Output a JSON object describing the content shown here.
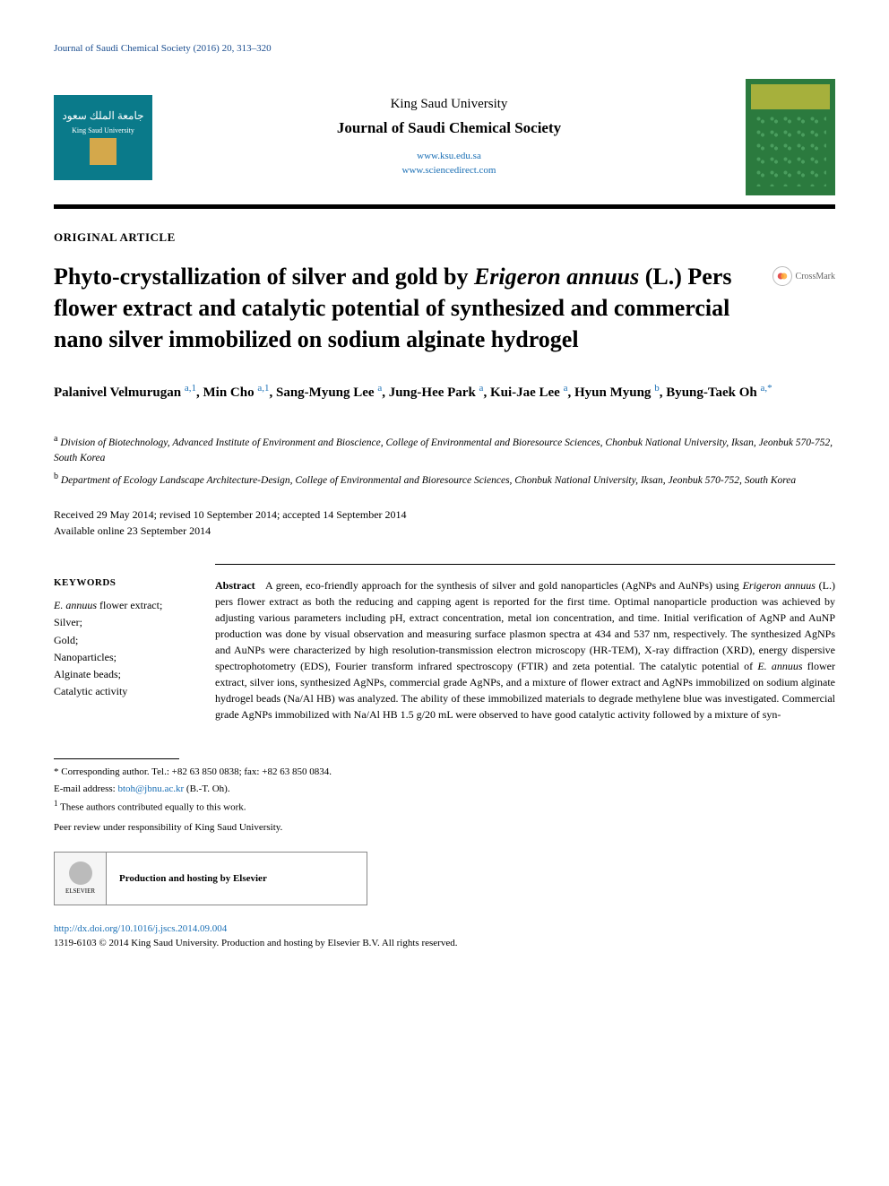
{
  "running_head": "Journal of Saudi Chemical Society (2016) 20, 313–320",
  "masthead": {
    "university": "King Saud University",
    "journal": "Journal of Saudi Chemical Society",
    "links": [
      "www.ksu.edu.sa",
      "www.sciencedirect.com"
    ]
  },
  "article_type": "ORIGINAL ARTICLE",
  "title_pre": "Phyto-crystallization of silver and gold by ",
  "title_italic": "Erigeron annuus",
  "title_post": " (L.) Pers flower extract and catalytic potential of synthesized and commercial nano silver immobilized on sodium alginate hydrogel",
  "crossmark": "CrossMark",
  "authors_html": "Palanivel Velmurugan <sup>a,1</sup>, Min Cho <sup>a,1</sup>, Sang-Myung Lee <sup>a</sup>, Jung-Hee Park <sup>a</sup>, Kui-Jae Lee <sup>a</sup>, Hyun Myung <sup>b</sup>, Byung-Taek Oh <sup>a,<span class='ast'>*</span></sup>",
  "affiliations": [
    {
      "sup": "a",
      "text": "Division of Biotechnology, Advanced Institute of Environment and Bioscience, College of Environmental and Bioresource Sciences, Chonbuk National University, Iksan, Jeonbuk 570-752, South Korea"
    },
    {
      "sup": "b",
      "text": "Department of Ecology Landscape Architecture-Design, College of Environmental and Bioresource Sciences, Chonbuk National University, Iksan, Jeonbuk 570-752, South Korea"
    }
  ],
  "dates": {
    "line1": "Received 29 May 2014; revised 10 September 2014; accepted 14 September 2014",
    "line2": "Available online 23 September 2014"
  },
  "keywords_head": "KEYWORDS",
  "keywords": [
    "E. annuus flower extract;",
    "Silver;",
    "Gold;",
    "Nanoparticles;",
    "Alginate beads;",
    "Catalytic activity"
  ],
  "abstract_lead": "Abstract",
  "abstract_body": "A green, eco-friendly approach for the synthesis of silver and gold nanoparticles (AgNPs and AuNPs) using Erigeron annuus (L.) pers flower extract as both the reducing and capping agent is reported for the first time. Optimal nanoparticle production was achieved by adjusting various parameters including pH, extract concentration, metal ion concentration, and time. Initial verification of AgNP and AuNP production was done by visual observation and measuring surface plasmon spectra at 434 and 537 nm, respectively. The synthesized AgNPs and AuNPs were characterized by high resolution-transmission electron microscopy (HR-TEM), X-ray diffraction (XRD), energy dispersive spectrophotometry (EDS), Fourier transform infrared spectroscopy (FTIR) and zeta potential. The catalytic potential of E. annuus flower extract, silver ions, synthesized AgNPs, commercial grade AgNPs, and a mixture of flower extract and AgNPs immobilized on sodium alginate hydrogel beads (Na/Al HB) was analyzed. The ability of these immobilized materials to degrade methylene blue was investigated. Commercial grade AgNPs immobilized with Na/Al HB 1.5 g/20 mL were observed to have good catalytic activity followed by a mixture of syn-",
  "footnotes": {
    "corresponding": "* Corresponding author. Tel.: +82 63 850 0838; fax: +82 63 850 0834.",
    "email_label": "E-mail address: ",
    "email": "btoh@jbnu.ac.kr",
    "email_name": " (B.-T. Oh).",
    "equal": "These authors contributed equally to this work.",
    "peer": "Peer review under responsibility of King Saud University."
  },
  "hosting": "Production and hosting by Elsevier",
  "bottom": {
    "doi": "http://dx.doi.org/10.1016/j.jscs.2014.09.004",
    "copyright": "1319-6103 © 2014 King Saud University. Production and hosting by Elsevier B.V. All rights reserved."
  },
  "colors": {
    "link": "#1a6fb5",
    "logo_left_bg": "#0a7a8a",
    "logo_right_bg": "#2b7a3e"
  }
}
